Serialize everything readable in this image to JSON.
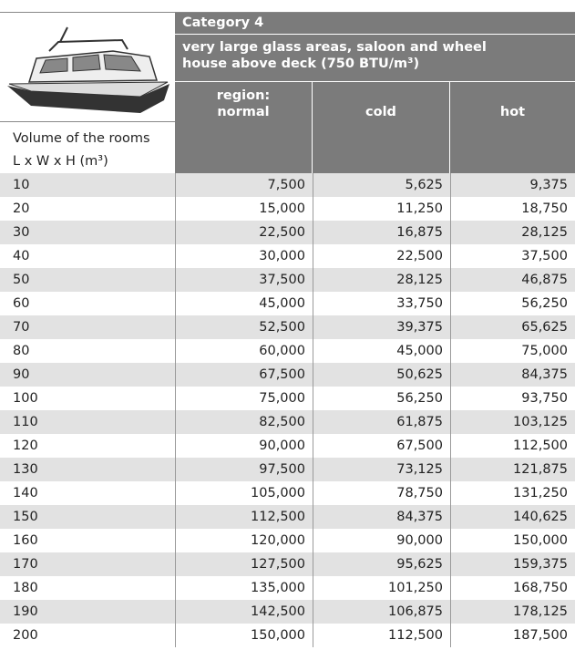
{
  "header": {
    "category": "Category 4",
    "description": [
      "very large glass areas, saloon and wheel",
      "house above deck (750 BTU/m³)"
    ],
    "row_header": [
      "Volume of the rooms",
      "L x W x H (m³)"
    ],
    "columns": [
      [
        "region:",
        "normal"
      ],
      [
        "cold"
      ],
      [
        "hot"
      ]
    ]
  },
  "table": {
    "rows": [
      [
        "10",
        "7,500",
        "5,625",
        "9,375"
      ],
      [
        "20",
        "15,000",
        "11,250",
        "18,750"
      ],
      [
        "30",
        "22,500",
        "16,875",
        "28,125"
      ],
      [
        "40",
        "30,000",
        "22,500",
        "37,500"
      ],
      [
        "50",
        "37,500",
        "28,125",
        "46,875"
      ],
      [
        "60",
        "45,000",
        "33,750",
        "56,250"
      ],
      [
        "70",
        "52,500",
        "39,375",
        "65,625"
      ],
      [
        "80",
        "60,000",
        "45,000",
        "75,000"
      ],
      [
        "90",
        "67,500",
        "50,625",
        "84,375"
      ],
      [
        "100",
        "75,000",
        "56,250",
        "93,750"
      ],
      [
        "110",
        "82,500",
        "61,875",
        "103,125"
      ],
      [
        "120",
        "90,000",
        "67,500",
        "112,500"
      ],
      [
        "130",
        "97,500",
        "73,125",
        "121,875"
      ],
      [
        "140",
        "105,000",
        "78,750",
        "131,250"
      ],
      [
        "150",
        "112,500",
        "84,375",
        "140,625"
      ],
      [
        "160",
        "120,000",
        "90,000",
        "150,000"
      ],
      [
        "170",
        "127,500",
        "95,625",
        "159,375"
      ],
      [
        "180",
        "135,000",
        "101,250",
        "168,750"
      ],
      [
        "190",
        "142,500",
        "106,875",
        "178,125"
      ],
      [
        "200",
        "150,000",
        "112,500",
        "187,500"
      ]
    ]
  }
}
